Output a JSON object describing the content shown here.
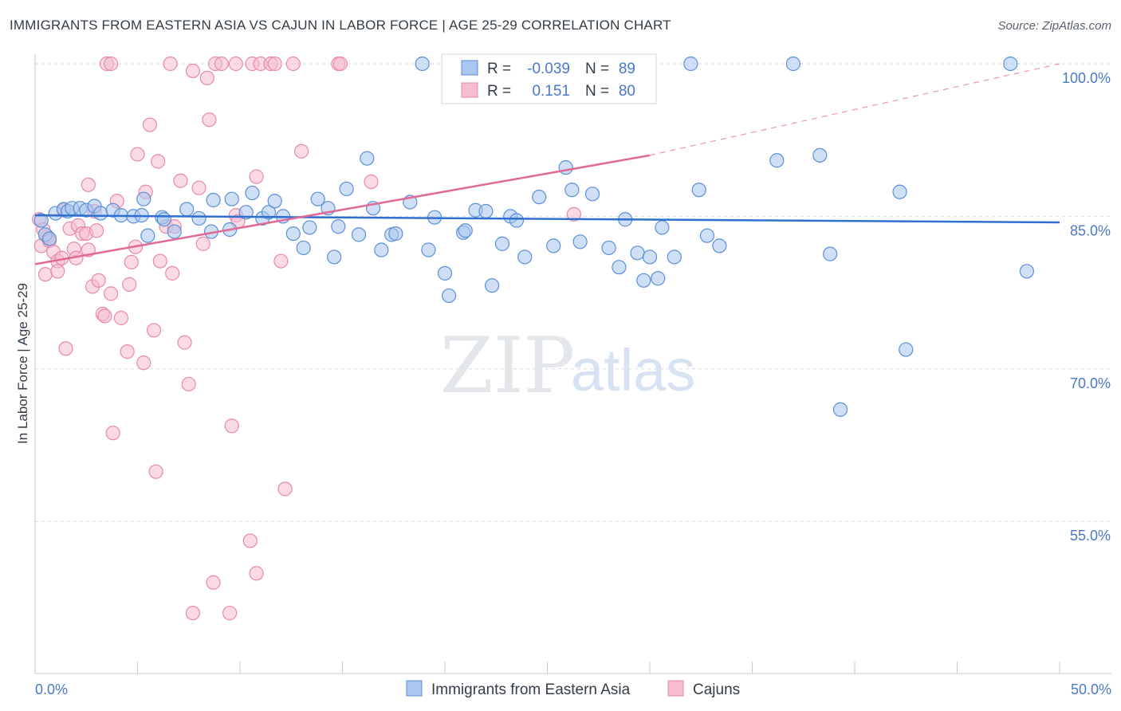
{
  "title": "IMMIGRANTS FROM EASTERN ASIA VS CAJUN IN LABOR FORCE | AGE 25-29 CORRELATION CHART",
  "source": "Source: ZipAtlas.com",
  "watermark": {
    "zip": "ZIP",
    "atlas": "atlas"
  },
  "colors": {
    "blue_fill": "#a8c6ee",
    "blue_stroke": "#5b8fd6",
    "blue_line": "#2f6fd0",
    "pink_fill": "#f6bcd0",
    "pink_stroke": "#e889a9",
    "pink_line": "#e06a95",
    "axis_text": "#4a78c8",
    "grid": "#d9d9d9"
  },
  "stats_legend": {
    "rows": [
      {
        "r_label": "R =",
        "r_value": "-0.039",
        "n_label": "N =",
        "n_value": "89"
      },
      {
        "r_label": "R =",
        "r_value": "0.151",
        "n_label": "N =",
        "n_value": "80"
      }
    ]
  },
  "chart_data": {
    "type": "scatter",
    "xlabel": "",
    "ylabel": "In Labor Force | Age 25-29",
    "xlim": [
      0,
      50
    ],
    "ylim": [
      40,
      102
    ],
    "x_tick_labels": [
      {
        "value": 0,
        "label": "0.0%"
      },
      {
        "value": 50,
        "label": "50.0%"
      }
    ],
    "y_tick_labels": [
      {
        "value": 100,
        "label": "100.0%"
      },
      {
        "value": 85,
        "label": "85.0%"
      },
      {
        "value": 70,
        "label": "70.0%"
      },
      {
        "value": 55,
        "label": "55.0%"
      }
    ],
    "grid": "horizontal dashed",
    "legend_position": "bottom-center",
    "series": [
      {
        "name": "Immigrants from Eastern Asia",
        "color": "#a8c6ee",
        "trend": {
          "x": [
            0,
            50
          ],
          "y": [
            85.1,
            84.4
          ],
          "style": "solid"
        },
        "points": [
          [
            0.3,
            84.6
          ],
          [
            0.5,
            83.2
          ],
          [
            0.7,
            82.8
          ],
          [
            1.0,
            85.3
          ],
          [
            1.4,
            85.7
          ],
          [
            1.6,
            85.5
          ],
          [
            1.8,
            85.8
          ],
          [
            2.2,
            85.8
          ],
          [
            2.5,
            85.6
          ],
          [
            2.9,
            86.0
          ],
          [
            3.2,
            85.3
          ],
          [
            3.8,
            85.6
          ],
          [
            4.2,
            85.1
          ],
          [
            4.8,
            85.0
          ],
          [
            5.2,
            85.1
          ],
          [
            5.3,
            86.7
          ],
          [
            5.5,
            83.1
          ],
          [
            6.2,
            84.9
          ],
          [
            6.3,
            84.7
          ],
          [
            6.8,
            83.5
          ],
          [
            7.4,
            85.7
          ],
          [
            8.0,
            84.8
          ],
          [
            8.6,
            83.5
          ],
          [
            8.7,
            86.6
          ],
          [
            9.5,
            83.7
          ],
          [
            9.6,
            86.7
          ],
          [
            10.3,
            85.4
          ],
          [
            10.6,
            87.3
          ],
          [
            11.1,
            84.8
          ],
          [
            11.4,
            85.4
          ],
          [
            11.7,
            86.5
          ],
          [
            12.1,
            85.0
          ],
          [
            12.6,
            83.3
          ],
          [
            13.1,
            81.9
          ],
          [
            13.4,
            83.9
          ],
          [
            13.8,
            86.7
          ],
          [
            14.3,
            85.8
          ],
          [
            14.6,
            81.0
          ],
          [
            14.8,
            84.0
          ],
          [
            15.2,
            87.7
          ],
          [
            15.8,
            83.2
          ],
          [
            16.2,
            90.7
          ],
          [
            16.5,
            85.8
          ],
          [
            16.9,
            81.7
          ],
          [
            17.4,
            83.2
          ],
          [
            17.6,
            83.3
          ],
          [
            18.3,
            86.4
          ],
          [
            18.9,
            100.0
          ],
          [
            19.2,
            81.7
          ],
          [
            19.5,
            84.9
          ],
          [
            20.0,
            79.4
          ],
          [
            20.2,
            77.2
          ],
          [
            20.9,
            83.4
          ],
          [
            21.0,
            83.6
          ],
          [
            21.5,
            85.6
          ],
          [
            22.0,
            85.5
          ],
          [
            22.3,
            78.2
          ],
          [
            22.8,
            82.3
          ],
          [
            23.2,
            85.0
          ],
          [
            23.5,
            84.6
          ],
          [
            23.9,
            81.0
          ],
          [
            24.6,
            86.9
          ],
          [
            25.3,
            82.1
          ],
          [
            25.9,
            89.8
          ],
          [
            26.2,
            87.6
          ],
          [
            26.6,
            82.5
          ],
          [
            27.2,
            87.2
          ],
          [
            28.0,
            81.9
          ],
          [
            28.5,
            80.0
          ],
          [
            28.8,
            84.7
          ],
          [
            29.4,
            81.4
          ],
          [
            29.7,
            78.7
          ],
          [
            30.0,
            81.0
          ],
          [
            30.4,
            78.9
          ],
          [
            30.6,
            83.9
          ],
          [
            31.2,
            81.0
          ],
          [
            32.0,
            100.0
          ],
          [
            32.4,
            87.6
          ],
          [
            32.8,
            83.1
          ],
          [
            33.4,
            82.1
          ],
          [
            36.2,
            90.5
          ],
          [
            37.0,
            100.0
          ],
          [
            38.3,
            91.0
          ],
          [
            38.8,
            81.3
          ],
          [
            42.2,
            87.4
          ],
          [
            42.5,
            71.9
          ],
          [
            47.6,
            100.0
          ],
          [
            48.4,
            79.6
          ],
          [
            39.3,
            66.0
          ]
        ]
      },
      {
        "name": "Cajuns",
        "color": "#f6bcd0",
        "trend": {
          "x": [
            0,
            30
          ],
          "y": [
            80.3,
            91.0
          ],
          "style": "solid",
          "extended": {
            "x": [
              30,
              50
            ],
            "y": [
              91.0,
              100.0
            ],
            "style": "dashed"
          }
        },
        "points": [
          [
            0.2,
            84.7
          ],
          [
            0.3,
            82.1
          ],
          [
            0.5,
            79.3
          ],
          [
            0.6,
            83.0
          ],
          [
            0.7,
            82.6
          ],
          [
            0.9,
            81.5
          ],
          [
            1.1,
            80.6
          ],
          [
            1.1,
            79.6
          ],
          [
            1.3,
            80.9
          ],
          [
            1.4,
            85.6
          ],
          [
            1.5,
            72.0
          ],
          [
            1.7,
            83.8
          ],
          [
            1.9,
            81.8
          ],
          [
            2.0,
            80.9
          ],
          [
            2.1,
            84.1
          ],
          [
            2.3,
            83.3
          ],
          [
            2.5,
            83.3
          ],
          [
            2.6,
            88.1
          ],
          [
            2.8,
            78.1
          ],
          [
            2.9,
            85.5
          ],
          [
            3.0,
            83.6
          ],
          [
            3.1,
            78.7
          ],
          [
            3.3,
            75.4
          ],
          [
            3.4,
            75.2
          ],
          [
            3.5,
            100.0
          ],
          [
            3.7,
            100.0
          ],
          [
            3.7,
            77.4
          ],
          [
            3.8,
            63.7
          ],
          [
            4.0,
            86.5
          ],
          [
            4.2,
            75.0
          ],
          [
            4.5,
            71.7
          ],
          [
            4.6,
            78.3
          ],
          [
            4.7,
            80.5
          ],
          [
            5.0,
            91.1
          ],
          [
            5.3,
            70.6
          ],
          [
            5.4,
            87.4
          ],
          [
            5.6,
            94.0
          ],
          [
            5.8,
            73.8
          ],
          [
            5.9,
            59.9
          ],
          [
            6.0,
            90.4
          ],
          [
            6.1,
            80.6
          ],
          [
            6.4,
            84.0
          ],
          [
            6.6,
            100.0
          ],
          [
            6.8,
            84.0
          ],
          [
            7.1,
            88.5
          ],
          [
            7.3,
            72.6
          ],
          [
            7.5,
            68.5
          ],
          [
            7.7,
            99.3
          ],
          [
            7.7,
            46.0
          ],
          [
            8.0,
            87.8
          ],
          [
            8.2,
            82.3
          ],
          [
            8.4,
            98.6
          ],
          [
            8.5,
            94.5
          ],
          [
            8.7,
            49.0
          ],
          [
            8.8,
            100.0
          ],
          [
            9.1,
            100.0
          ],
          [
            9.5,
            46.0
          ],
          [
            9.6,
            64.4
          ],
          [
            9.8,
            100.0
          ],
          [
            9.8,
            85.1
          ],
          [
            10.5,
            53.1
          ],
          [
            10.6,
            100.0
          ],
          [
            10.8,
            49.9
          ],
          [
            10.8,
            88.9
          ],
          [
            11.0,
            100.0
          ],
          [
            11.5,
            100.0
          ],
          [
            11.7,
            100.0
          ],
          [
            12.0,
            80.6
          ],
          [
            12.2,
            58.2
          ],
          [
            12.6,
            100.0
          ],
          [
            13.0,
            91.4
          ],
          [
            14.8,
            100.0
          ],
          [
            14.9,
            100.0
          ],
          [
            16.4,
            88.4
          ],
          [
            26.3,
            85.2
          ],
          [
            2.6,
            81.7
          ],
          [
            0.4,
            83.7
          ],
          [
            9.9,
            84.5
          ],
          [
            4.9,
            82.0
          ],
          [
            6.7,
            79.4
          ]
        ]
      }
    ]
  },
  "bottom_legend": {
    "items": [
      {
        "label": "Immigrants from Eastern Asia"
      },
      {
        "label": "Cajuns"
      }
    ]
  }
}
